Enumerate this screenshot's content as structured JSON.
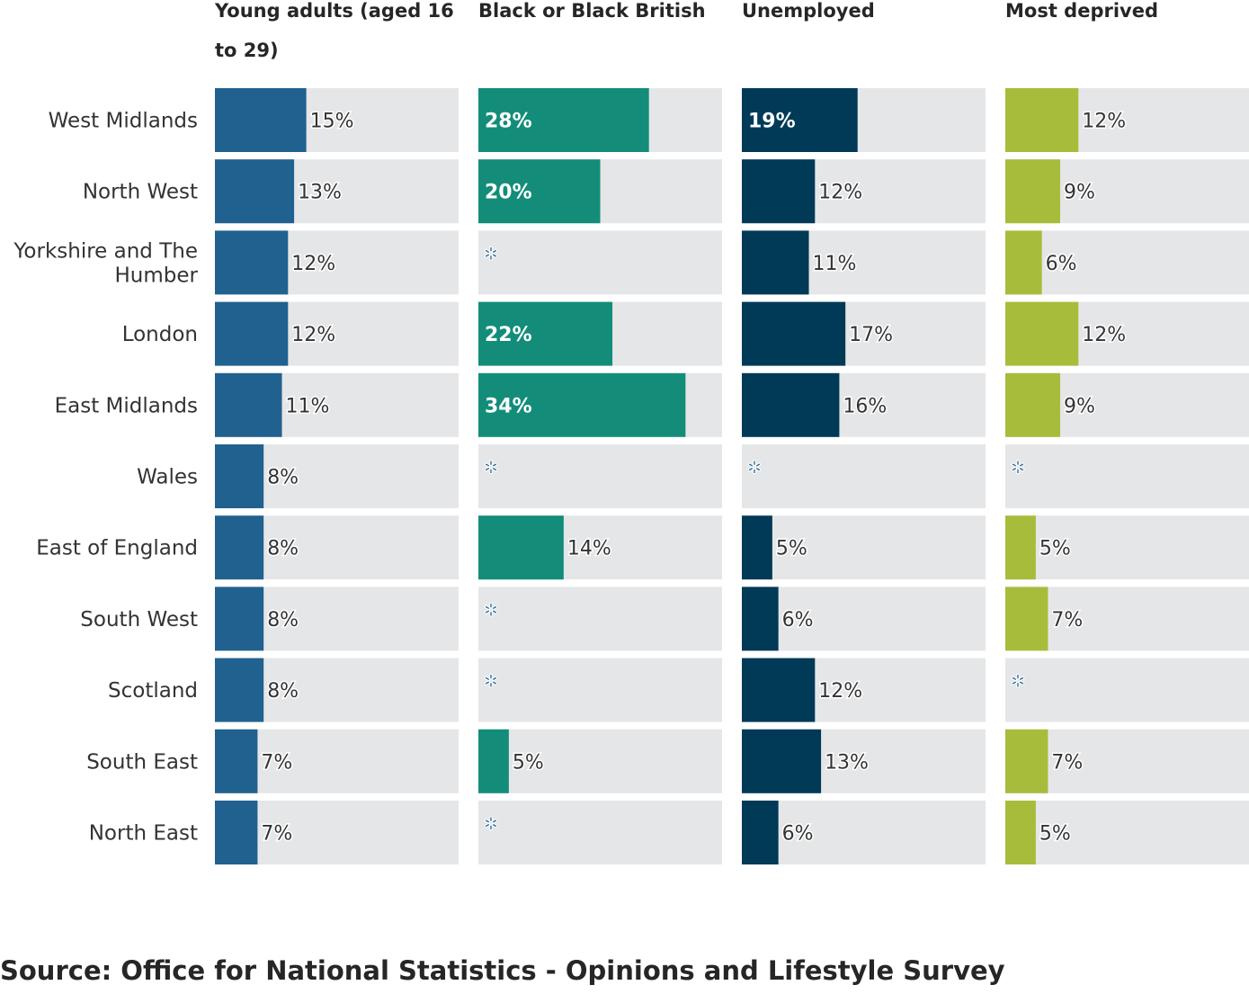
{
  "chart_data": {
    "type": "bar",
    "orientation": "horizontal",
    "layout": "small-multiples",
    "categories": [
      "West Midlands",
      "North West",
      "Yorkshire and The Humber",
      "London",
      "East Midlands",
      "Wales",
      "East of England",
      "South West",
      "Scotland",
      "South East",
      "North East"
    ],
    "xlim": [
      0,
      40
    ],
    "grid": false,
    "legend": "none",
    "suppressed_marker": "✲",
    "value_suffix": "%",
    "series": [
      {
        "name": "Young adults (aged 16 to 29)",
        "color": "#21618f",
        "values": [
          15,
          13,
          12,
          12,
          11,
          8,
          8,
          8,
          8,
          7,
          7
        ]
      },
      {
        "name": "Black or Black British",
        "color": "#138d7a",
        "values": [
          28,
          20,
          null,
          22,
          34,
          null,
          14,
          null,
          null,
          5,
          null
        ]
      },
      {
        "name": "Unemployed",
        "color": "#013a57",
        "values": [
          19,
          12,
          11,
          17,
          16,
          null,
          5,
          6,
          12,
          13,
          6
        ]
      },
      {
        "name": "Most deprived",
        "color": "#a8bc3b",
        "values": [
          12,
          9,
          6,
          12,
          9,
          null,
          5,
          7,
          null,
          7,
          5
        ]
      }
    ],
    "track_color": "#e5e6e8",
    "suppressed_color": "#21618f"
  },
  "source": "Source: Office for National Statistics - Opinions and Lifestyle Survey"
}
